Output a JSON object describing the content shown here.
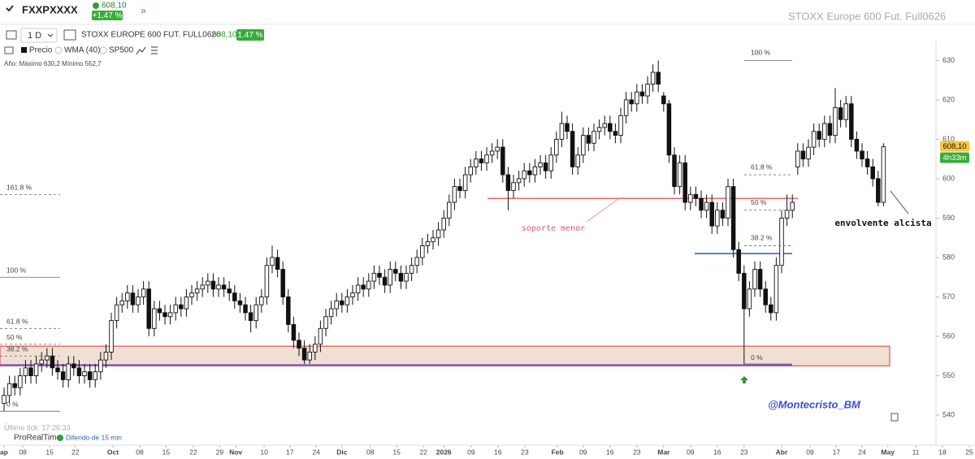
{
  "header": {
    "symbol": "FXXPXXXX",
    "price": "608,10",
    "change": "+1,47 %",
    "watermark": "STOXX Europe 600 Fut. Full0626",
    "timeframe": "1 D",
    "instrument": "STOXX EUROPE 600 FUT. FULL0626",
    "instrument_price": "608,10",
    "instrument_change": "1.47 %",
    "legend": [
      "Precio",
      "WMA (40)",
      "SP500"
    ],
    "year_range": "Año: Máximo 630,2 Mínimo 552,7"
  },
  "footer": {
    "last_tick": "Último tick: 17:26:33",
    "platform": "ProRealTime",
    "delay": "Diferido de 15 min"
  },
  "chart_data": {
    "type": "candlestick",
    "x": [
      0,
      1,
      2,
      3,
      4,
      5,
      6,
      7,
      8,
      9,
      10,
      11,
      12,
      13,
      14,
      15,
      16,
      17,
      18,
      19,
      20,
      21,
      22,
      23,
      24,
      25,
      26,
      27,
      28,
      29,
      30,
      31,
      32,
      33,
      34,
      35,
      36,
      37,
      38,
      39,
      40,
      41,
      42,
      43,
      44,
      45,
      46,
      47,
      48,
      49,
      50,
      51,
      52,
      53,
      54,
      55,
      56,
      57,
      58,
      59,
      60,
      61,
      62,
      63,
      64,
      65,
      66,
      67,
      68,
      69,
      70,
      71,
      72,
      73,
      74,
      75,
      76,
      77,
      78,
      79,
      80,
      81,
      82,
      83,
      84,
      85,
      86,
      87,
      88,
      89,
      90,
      91,
      92,
      93,
      94,
      95,
      96,
      97,
      98,
      99,
      100,
      101,
      102,
      103,
      104,
      105,
      106,
      107,
      108,
      109,
      110,
      111,
      112,
      113,
      114,
      115,
      116,
      117,
      118,
      119,
      120,
      121,
      122,
      123,
      124,
      125,
      126,
      127,
      128,
      129,
      130,
      131,
      132,
      133,
      134,
      135,
      136,
      137,
      138,
      139,
      140,
      141,
      142,
      143,
      144,
      145,
      146,
      147,
      148,
      149,
      150,
      151,
      152,
      153,
      154,
      155,
      156,
      157,
      158,
      159,
      160,
      161,
      162,
      163,
      164
    ],
    "open": [
      543,
      545,
      548,
      547,
      550,
      552,
      550,
      553,
      554,
      555,
      552,
      551,
      549,
      553,
      552,
      550,
      551,
      549,
      551,
      554,
      556,
      564,
      568,
      569,
      571,
      568,
      570,
      572,
      562,
      567,
      566,
      565,
      566,
      568,
      567,
      570,
      571,
      572,
      573,
      574,
      572,
      573,
      572,
      571,
      569,
      568,
      566,
      564,
      568,
      570,
      578,
      580,
      577,
      570,
      563,
      559,
      557,
      554,
      556,
      558,
      562,
      565,
      567,
      569,
      568,
      570,
      571,
      573,
      572,
      574,
      576,
      575,
      573,
      577,
      576,
      574,
      576,
      578,
      580,
      583,
      584,
      585,
      587,
      590,
      594,
      598,
      597,
      601,
      603,
      605,
      604,
      606,
      607,
      608,
      601,
      597,
      599,
      600,
      602,
      601,
      603,
      604,
      602,
      606,
      610,
      614,
      612,
      603,
      606,
      611,
      609,
      612,
      613,
      614,
      612,
      611,
      616,
      620,
      619,
      622,
      621,
      624,
      627,
      621,
      619,
      606,
      598,
      604,
      594,
      596,
      595,
      592,
      594,
      588,
      592,
      590,
      598,
      582,
      576,
      567,
      572,
      577,
      572,
      568,
      566,
      578,
      590,
      592,
      603,
      607,
      605,
      608,
      612,
      610,
      614,
      611,
      618,
      615,
      619,
      610,
      607,
      605,
      603,
      600,
      594
    ],
    "high": [
      547,
      550,
      550,
      552,
      554,
      554,
      555,
      556,
      557,
      557,
      554,
      553,
      555,
      555,
      554,
      553,
      553,
      553,
      556,
      558,
      566,
      570,
      571,
      573,
      573,
      572,
      574,
      574,
      569,
      569,
      568,
      568,
      570,
      570,
      572,
      573,
      574,
      575,
      576,
      576,
      575,
      575,
      574,
      573,
      571,
      570,
      568,
      570,
      572,
      580,
      583,
      582,
      579,
      572,
      565,
      561,
      559,
      558,
      560,
      564,
      567,
      569,
      571,
      571,
      572,
      573,
      575,
      575,
      576,
      578,
      578,
      577,
      579,
      579,
      578,
      578,
      580,
      582,
      585,
      586,
      587,
      589,
      592,
      596,
      600,
      600,
      603,
      605,
      607,
      607,
      608,
      609,
      610,
      610,
      603,
      601,
      602,
      604,
      604,
      605,
      606,
      606,
      608,
      612,
      617,
      616,
      614,
      608,
      613,
      613,
      614,
      615,
      616,
      616,
      614,
      618,
      622,
      622,
      624,
      624,
      626,
      629,
      630,
      622,
      620,
      608,
      606,
      606,
      598,
      598,
      597,
      596,
      596,
      594,
      594,
      600,
      600,
      584,
      578,
      574,
      579,
      579,
      574,
      570,
      580,
      592,
      596,
      596,
      609,
      609,
      610,
      614,
      614,
      616,
      616,
      623,
      620,
      621,
      621,
      612,
      609,
      607,
      605,
      602,
      609
    ],
    "low": [
      541,
      543,
      545,
      545,
      548,
      548,
      548,
      551,
      552,
      550,
      549,
      547,
      547,
      550,
      548,
      548,
      547,
      547,
      549,
      552,
      554,
      562,
      566,
      567,
      566,
      566,
      568,
      560,
      560,
      564,
      563,
      563,
      564,
      565,
      565,
      568,
      569,
      570,
      571,
      570,
      570,
      570,
      569,
      567,
      566,
      564,
      561,
      562,
      566,
      568,
      576,
      575,
      568,
      561,
      557,
      555,
      553,
      553,
      554,
      556,
      560,
      563,
      565,
      566,
      566,
      568,
      569,
      570,
      570,
      572,
      573,
      571,
      571,
      574,
      572,
      572,
      574,
      576,
      578,
      581,
      582,
      583,
      585,
      588,
      592,
      595,
      595,
      599,
      601,
      602,
      602,
      604,
      605,
      599,
      592,
      595,
      597,
      598,
      599,
      599,
      601,
      600,
      600,
      604,
      608,
      610,
      601,
      601,
      604,
      607,
      607,
      610,
      611,
      610,
      609,
      609,
      614,
      617,
      617,
      619,
      619,
      622,
      622,
      617,
      604,
      596,
      596,
      592,
      592,
      593,
      590,
      590,
      586,
      586,
      588,
      588,
      580,
      574,
      553,
      565,
      570,
      570,
      566,
      564,
      564,
      576,
      588,
      590,
      601,
      603,
      603,
      606,
      608,
      608,
      609,
      609,
      613,
      613,
      608,
      605,
      603,
      601,
      598,
      593,
      593
    ],
    "close": [
      545,
      548,
      547,
      550,
      552,
      550,
      553,
      554,
      555,
      552,
      551,
      549,
      553,
      552,
      550,
      551,
      549,
      551,
      554,
      556,
      564,
      568,
      569,
      571,
      568,
      570,
      572,
      562,
      567,
      566,
      565,
      566,
      568,
      567,
      570,
      571,
      572,
      573,
      574,
      572,
      573,
      572,
      571,
      569,
      568,
      566,
      564,
      568,
      570,
      578,
      580,
      577,
      570,
      563,
      559,
      557,
      554,
      556,
      558,
      562,
      565,
      567,
      569,
      568,
      570,
      571,
      573,
      572,
      574,
      576,
      575,
      573,
      577,
      576,
      574,
      576,
      578,
      580,
      583,
      584,
      585,
      587,
      590,
      594,
      598,
      597,
      601,
      603,
      605,
      604,
      606,
      607,
      608,
      601,
      597,
      599,
      600,
      602,
      601,
      603,
      604,
      602,
      606,
      610,
      614,
      612,
      603,
      606,
      611,
      609,
      612,
      613,
      614,
      612,
      611,
      616,
      620,
      619,
      622,
      621,
      624,
      627,
      624,
      619,
      606,
      598,
      604,
      594,
      596,
      595,
      592,
      594,
      588,
      592,
      590,
      598,
      582,
      576,
      567,
      572,
      577,
      572,
      568,
      566,
      578,
      590,
      592,
      594,
      607,
      605,
      608,
      612,
      610,
      614,
      611,
      618,
      615,
      619,
      610,
      607,
      605,
      603,
      600,
      594,
      608.1
    ],
    "xlim": [
      -0.76,
      181.06
    ],
    "xticks": [
      {
        "value": 0,
        "label": "ap"
      },
      {
        "value": 3.5,
        "label": "08"
      },
      {
        "value": 8.5,
        "label": "15"
      },
      {
        "value": 13.3,
        "label": "22"
      },
      {
        "value": 20.3,
        "label": "Oct"
      },
      {
        "value": 25.3,
        "label": "08"
      },
      {
        "value": 30.2,
        "label": "15"
      },
      {
        "value": 35.3,
        "label": "22"
      },
      {
        "value": 40.2,
        "label": "29"
      },
      {
        "value": 43.2,
        "label": "Nov"
      },
      {
        "value": 48.5,
        "label": "10"
      },
      {
        "value": 53.3,
        "label": "17"
      },
      {
        "value": 58.2,
        "label": "24"
      },
      {
        "value": 63,
        "label": "Dic"
      },
      {
        "value": 68.3,
        "label": "08"
      },
      {
        "value": 73.2,
        "label": "15"
      },
      {
        "value": 78.2,
        "label": "22"
      },
      {
        "value": 82,
        "label": "2026"
      },
      {
        "value": 87.1,
        "label": "09"
      },
      {
        "value": 92.1,
        "label": "16"
      },
      {
        "value": 97.1,
        "label": "23"
      },
      {
        "value": 103.2,
        "label": "Feb"
      },
      {
        "value": 108,
        "label": "09"
      },
      {
        "value": 113,
        "label": "16"
      },
      {
        "value": 118,
        "label": "23"
      },
      {
        "value": 123,
        "label": "Mar"
      },
      {
        "value": 128,
        "label": "09"
      },
      {
        "value": 133,
        "label": "16"
      },
      {
        "value": 138,
        "label": "23"
      },
      {
        "value": 145,
        "label": "Abr"
      },
      {
        "value": 150.3,
        "label": "09"
      },
      {
        "value": 155.2,
        "label": "17"
      },
      {
        "value": 160,
        "label": "24"
      },
      {
        "value": 164.8,
        "label": "May"
      },
      {
        "value": 170,
        "label": "11"
      },
      {
        "value": 175,
        "label": "18"
      },
      {
        "value": 180,
        "label": "25"
      }
    ],
    "ylim": [
      533,
      634
    ],
    "yticks": [
      540,
      550,
      560,
      570,
      580,
      590,
      600,
      610,
      620,
      630
    ],
    "last_price": {
      "value": 608.1,
      "label": "608,10"
    },
    "timer": "4h33m",
    "fib_left": [
      {
        "label": "161.8 %",
        "value": 596
      },
      {
        "label": "100 %",
        "value": 575
      },
      {
        "label": "61.8 %",
        "value": 562
      },
      {
        "label": "50 %",
        "value": 558
      },
      {
        "label": "38.2 %",
        "value": 555
      },
      {
        "label": "0 %",
        "value": 541
      }
    ],
    "fib_right": [
      {
        "label": "100 %",
        "value": 630
      },
      {
        "label": "61.8 %",
        "value": 601
      },
      {
        "label": "50 %",
        "value": 592
      },
      {
        "label": "38.2 %",
        "value": 583
      },
      {
        "label": "0 %",
        "value": 553
      }
    ],
    "support": {
      "label": "soporte menor",
      "value": 595
    },
    "neckline": 581,
    "zone": [
      552.5,
      557.5
    ],
    "year_low": 552.7,
    "note": "envolvente alcista",
    "signature": "@Montecristo_BM"
  }
}
